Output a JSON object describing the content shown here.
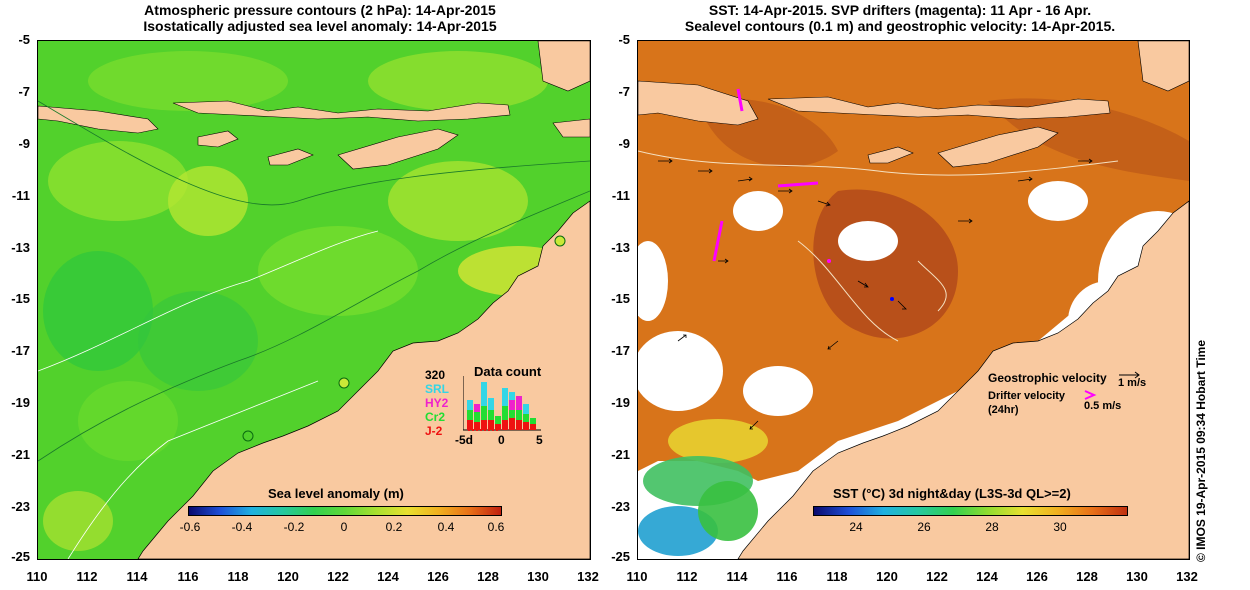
{
  "left_title": {
    "line1": "Atmospheric pressure contours (2 hPa): 14-Apr-2015",
    "line2": "Isostatically adjusted sea level anomaly: 14-Apr-2015"
  },
  "right_title": {
    "line1": "SST: 14-Apr-2015. SVP drifters (magenta): 11 Apr - 16 Apr.",
    "line2": "Sealevel contours (0.1 m) and geostrophic velocity: 14-Apr-2015."
  },
  "axes": {
    "y_ticks": [
      "-5",
      "-7",
      "-9",
      "-11",
      "-13",
      "-15",
      "-17",
      "-19",
      "-21",
      "-23",
      "-25"
    ],
    "x_ticks": [
      "110",
      "112",
      "114",
      "116",
      "118",
      "120",
      "122",
      "124",
      "126",
      "128",
      "130",
      "132"
    ]
  },
  "left_colorbar": {
    "title": "Sea level anomaly (m)",
    "labels": [
      "-0.6",
      "-0.4",
      "-0.2",
      "0",
      "0.2",
      "0.4",
      "0.6"
    ]
  },
  "right_colorbar": {
    "title": "SST (°C) 3d night&day (L3S-3d QL>=2)",
    "labels": [
      "24",
      "26",
      "28",
      "30"
    ]
  },
  "data_count": {
    "title": "Data count",
    "max": "320",
    "satellites": [
      {
        "name": "SRL",
        "color": "#33d6e6"
      },
      {
        "name": "HY2",
        "color": "#ee22cc"
      },
      {
        "name": "Cr2",
        "color": "#22dd33"
      },
      {
        "name": "J-2",
        "color": "#ee1111"
      }
    ],
    "x_labels": [
      "-5d",
      "0",
      "5"
    ]
  },
  "velocity_legend": {
    "geo_label": "Geostrophic velocity",
    "geo_scale": "1 m/s",
    "drifter_label1": "Drifter velocity",
    "drifter_label2": "(24hr)",
    "drifter_scale": "0.5 m/s"
  },
  "credit": "© IMOS 19-Apr-2015 09:34 Hobart Time",
  "colors": {
    "land": "#f9c9a0",
    "sla_green": "#4fd02a",
    "sst_orange": "#d8741a",
    "drifter": "#ff00ff"
  }
}
